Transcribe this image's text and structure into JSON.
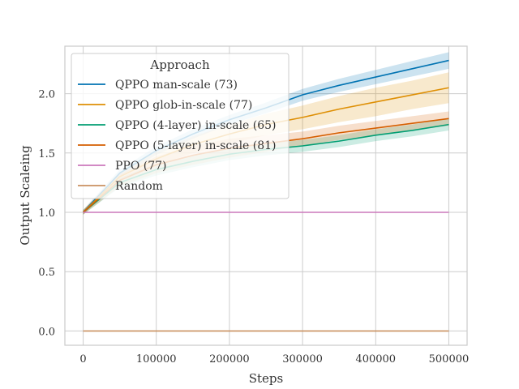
{
  "chart_data": {
    "type": "line",
    "title": "",
    "xlabel": "Steps",
    "ylabel": "Output Scaleing",
    "xlim": [
      -25000,
      525000
    ],
    "ylim": [
      -0.12,
      2.4
    ],
    "xticks": [
      0,
      100000,
      200000,
      300000,
      400000,
      500000
    ],
    "xtick_labels": [
      "0",
      "100000",
      "200000",
      "300000",
      "400000",
      "500000"
    ],
    "yticks": [
      0.0,
      0.5,
      1.0,
      1.5,
      2.0
    ],
    "ytick_labels": [
      "0.0",
      "0.5",
      "1.0",
      "1.5",
      "2.0"
    ],
    "grid": true,
    "legend": {
      "title": "Approach",
      "placement": "upper-left"
    },
    "x": [
      0,
      50000,
      100000,
      150000,
      200000,
      250000,
      300000,
      350000,
      400000,
      450000,
      500000
    ],
    "series": [
      {
        "name": "QPPO man-scale (73)",
        "color": "#0173b2",
        "values": [
          1.0,
          1.33,
          1.52,
          1.66,
          1.78,
          1.88,
          1.99,
          2.07,
          2.14,
          2.21,
          2.28
        ],
        "band": [
          0.02,
          0.03,
          0.035,
          0.04,
          0.04,
          0.045,
          0.05,
          0.055,
          0.06,
          0.065,
          0.07
        ]
      },
      {
        "name": "QPPO glob-in-scale (77)",
        "color": "#de8f05",
        "values": [
          1.0,
          1.3,
          1.45,
          1.57,
          1.66,
          1.74,
          1.8,
          1.87,
          1.93,
          1.99,
          2.05
        ],
        "band": [
          0.02,
          0.04,
          0.06,
          0.07,
          0.08,
          0.09,
          0.1,
          0.11,
          0.12,
          0.12,
          0.13
        ]
      },
      {
        "name": "QPPO (4-layer) in-scale (65)",
        "color": "#029e73",
        "values": [
          1.0,
          1.25,
          1.36,
          1.43,
          1.49,
          1.53,
          1.56,
          1.6,
          1.65,
          1.69,
          1.74
        ],
        "band": [
          0.02,
          0.04,
          0.05,
          0.05,
          0.05,
          0.05,
          0.05,
          0.05,
          0.05,
          0.05,
          0.05
        ]
      },
      {
        "name": "QPPO (5-layer) in-scale (81)",
        "color": "#d55e00",
        "values": [
          1.0,
          1.27,
          1.4,
          1.48,
          1.54,
          1.58,
          1.62,
          1.67,
          1.71,
          1.75,
          1.79
        ],
        "band": [
          0.02,
          0.05,
          0.07,
          0.08,
          0.08,
          0.07,
          0.06,
          0.06,
          0.06,
          0.06,
          0.06
        ]
      },
      {
        "name": "PPO (77)",
        "color": "#cc78bc",
        "values": [
          1.0,
          1.0,
          1.0,
          1.0,
          1.0,
          1.0,
          1.0,
          1.0,
          1.0,
          1.0,
          1.0
        ],
        "band": [
          0,
          0,
          0,
          0,
          0,
          0,
          0,
          0,
          0,
          0,
          0
        ]
      },
      {
        "name": "Random",
        "color": "#ca9161",
        "values": [
          0.0,
          0.0,
          0.0,
          0.0,
          0.0,
          0.0,
          0.0,
          0.0,
          0.0,
          0.0,
          0.0
        ],
        "band": [
          0,
          0,
          0,
          0,
          0,
          0,
          0,
          0,
          0,
          0,
          0
        ]
      }
    ]
  }
}
